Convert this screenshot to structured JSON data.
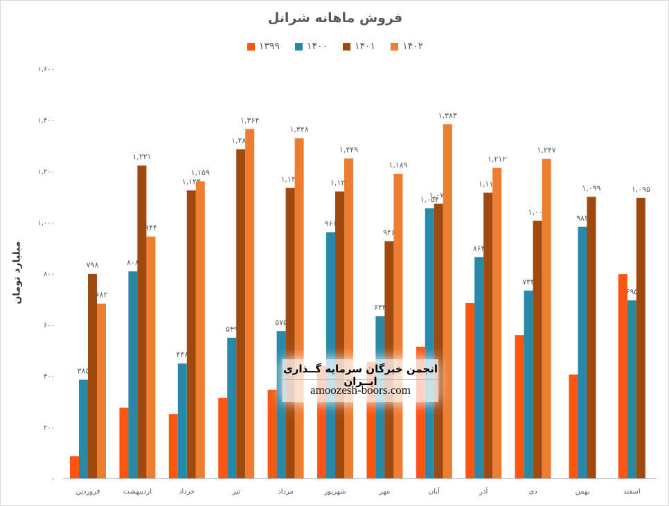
{
  "chart_data": {
    "type": "bar",
    "title": "فروش ماهانه شرانل",
    "ylabel": "میلیارد تومان",
    "xlabel": "",
    "ylim": [
      0,
      1600
    ],
    "yticks": [
      0,
      200,
      400,
      600,
      800,
      1000,
      1200,
      1400,
      1600
    ],
    "grid": false,
    "legend": "top",
    "categories": [
      "فروردین",
      "اردیبهشت",
      "خرداد",
      "تیر",
      "مرداد",
      "شهریور",
      "مهر",
      "آبان",
      "آذر",
      "دی",
      "بهمن",
      "اسفند"
    ],
    "series": [
      {
        "name": "۱۳۹۹",
        "color": "#FF5511",
        "labeled": false,
        "values": [
          86,
          276,
          251,
          314,
          346,
          438,
          454,
          514,
          684,
          559,
          405,
          797
        ]
      },
      {
        "name": "۱۴۰۰",
        "color": "#2888A8",
        "labeled": true,
        "values": [
          385,
          808,
          448,
          549,
          575,
          961,
          633,
          1054,
          864,
          733,
          982,
          695
        ]
      },
      {
        "name": "۱۴۰۱",
        "color": "#A04A10",
        "labeled": true,
        "values": [
          798,
          1221,
          1124,
          1285,
          1134,
          1120,
          926,
          1072,
          1115,
          1006,
          1099,
          1095
        ]
      },
      {
        "name": "۱۴۰۲",
        "color": "#ED7D31",
        "labeled": true,
        "values": [
          682,
          944,
          1159,
          1364,
          1328,
          1249,
          1189,
          1383,
          1212,
          1247,
          null,
          null
        ]
      }
    ]
  },
  "watermark": {
    "line1": "انجمن خبرگان سرمایه گــذاری ایــران",
    "line2": "amoozesh-boors.com"
  }
}
